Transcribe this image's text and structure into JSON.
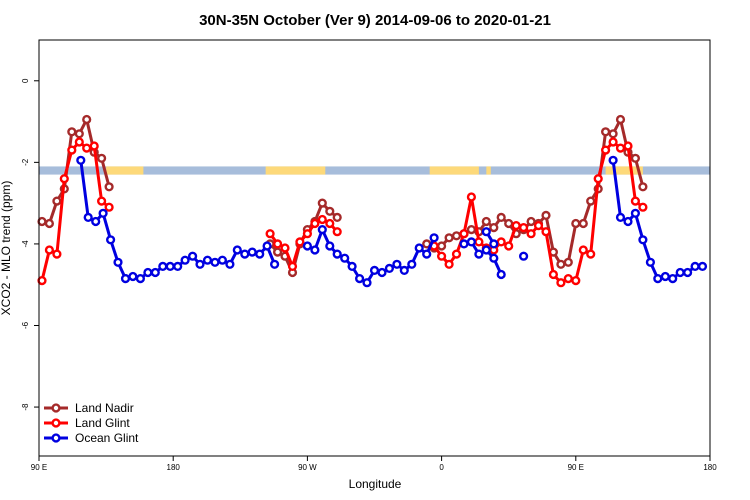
{
  "chart_data": {
    "type": "line",
    "title": "30N-35N October (Ver 9)   2014-09-06 to 2020-01-21",
    "xlabel": "Longitude",
    "ylabel": "XCO2 - MLO trend (ppm)",
    "xlim": [
      0,
      450
    ],
    "ylim": [
      -9.2,
      1.0
    ],
    "x_ticks": [
      {
        "value": 0,
        "label": "90 E"
      },
      {
        "value": 90,
        "label": "180"
      },
      {
        "value": 180,
        "label": "90 W"
      },
      {
        "value": 270,
        "label": "0"
      },
      {
        "value": 360,
        "label": "90 E"
      },
      {
        "value": 450,
        "label": "180"
      }
    ],
    "y_ticks": [
      {
        "value": 0,
        "label": "0"
      },
      {
        "value": -2,
        "label": "-2"
      },
      {
        "value": -4,
        "label": "-4"
      },
      {
        "value": -6,
        "label": "-6"
      },
      {
        "value": -8,
        "label": "-8"
      }
    ],
    "grid": false,
    "legend_position": "bottom-left",
    "land_mask": {
      "y_range": [
        -2.3,
        -2.1
      ],
      "ocean_color": "#a7bddb",
      "land_color": "#fdd97a",
      "land_intervals": [
        [
          45,
          70
        ],
        [
          152,
          192
        ],
        [
          262,
          295
        ],
        [
          300,
          303
        ],
        [
          380,
          405
        ]
      ]
    },
    "series": [
      {
        "name": "Land Nadir",
        "color": "#a52a2a",
        "segments": [
          [
            [
              2,
              -3.45
            ],
            [
              7,
              -3.5
            ],
            [
              12,
              -2.95
            ],
            [
              17,
              -2.65
            ],
            [
              22,
              -1.25
            ],
            [
              27,
              -1.3
            ],
            [
              32,
              -0.95
            ],
            [
              37,
              -1.75
            ],
            [
              42,
              -1.9
            ],
            [
              47,
              -2.6
            ]
          ],
          [
            [
              155,
              -4.0
            ],
            [
              160,
              -4.2
            ],
            [
              165,
              -4.3
            ],
            [
              170,
              -4.7
            ],
            [
              175,
              -4.0
            ],
            [
              180,
              -3.65
            ],
            [
              185,
              -3.45
            ],
            [
              190,
              -3.0
            ],
            [
              195,
              -3.2
            ],
            [
              200,
              -3.35
            ]
          ],
          [
            [
              260,
              -4.0
            ],
            [
              265,
              -4.1
            ],
            [
              270,
              -4.05
            ],
            [
              275,
              -3.85
            ],
            [
              280,
              -3.8
            ],
            [
              285,
              -3.75
            ],
            [
              290,
              -3.65
            ],
            [
              295,
              -3.7
            ],
            [
              300,
              -3.45
            ],
            [
              305,
              -3.6
            ],
            [
              310,
              -3.35
            ],
            [
              315,
              -3.5
            ],
            [
              320,
              -3.75
            ],
            [
              325,
              -3.65
            ],
            [
              330,
              -3.45
            ],
            [
              335,
              -3.5
            ],
            [
              340,
              -3.3
            ],
            [
              345,
              -4.2
            ],
            [
              350,
              -4.5
            ],
            [
              355,
              -4.45
            ],
            [
              360,
              -3.5
            ],
            [
              365,
              -3.5
            ],
            [
              370,
              -2.95
            ],
            [
              375,
              -2.65
            ],
            [
              380,
              -1.25
            ],
            [
              385,
              -1.3
            ],
            [
              390,
              -0.95
            ],
            [
              395,
              -1.75
            ],
            [
              400,
              -1.9
            ],
            [
              405,
              -2.6
            ]
          ]
        ]
      },
      {
        "name": "Land Glint",
        "color": "#ff0000",
        "segments": [
          [
            [
              2,
              -4.9
            ],
            [
              7,
              -4.15
            ],
            [
              12,
              -4.25
            ],
            [
              17,
              -2.4
            ],
            [
              22,
              -1.7
            ],
            [
              27,
              -1.5
            ],
            [
              32,
              -1.65
            ],
            [
              37,
              -1.6
            ],
            [
              42,
              -2.95
            ],
            [
              47,
              -3.1
            ]
          ],
          [
            [
              155,
              -3.75
            ],
            [
              160,
              -4.0
            ],
            [
              165,
              -4.1
            ],
            [
              170,
              -4.55
            ],
            [
              175,
              -3.95
            ],
            [
              180,
              -3.75
            ],
            [
              185,
              -3.5
            ],
            [
              190,
              -3.4
            ],
            [
              195,
              -3.5
            ],
            [
              200,
              -3.7
            ]
          ],
          [
            [
              265,
              -4.05
            ],
            [
              270,
              -4.3
            ],
            [
              275,
              -4.5
            ],
            [
              280,
              -4.25
            ],
            [
              285,
              -3.75
            ],
            [
              290,
              -2.85
            ],
            [
              295,
              -3.95
            ],
            [
              300,
              -4.1
            ],
            [
              305,
              -4.15
            ],
            [
              310,
              -3.95
            ],
            [
              315,
              -4.05
            ],
            [
              320,
              -3.55
            ],
            [
              325,
              -3.6
            ],
            [
              330,
              -3.75
            ],
            [
              335,
              -3.55
            ],
            [
              340,
              -3.7
            ],
            [
              345,
              -4.75
            ],
            [
              350,
              -4.95
            ],
            [
              355,
              -4.85
            ],
            [
              360,
              -4.9
            ],
            [
              365,
              -4.15
            ],
            [
              370,
              -4.25
            ],
            [
              375,
              -2.4
            ],
            [
              380,
              -1.7
            ],
            [
              385,
              -1.5
            ],
            [
              390,
              -1.65
            ],
            [
              395,
              -1.6
            ],
            [
              400,
              -2.95
            ],
            [
              405,
              -3.1
            ]
          ]
        ]
      },
      {
        "name": "Ocean Glint",
        "color": "#0000e0",
        "segments": [
          [
            [
              28,
              -1.95
            ],
            [
              33,
              -3.35
            ],
            [
              38,
              -3.45
            ],
            [
              43,
              -3.25
            ],
            [
              48,
              -3.9
            ],
            [
              53,
              -4.45
            ],
            [
              58,
              -4.85
            ],
            [
              63,
              -4.8
            ],
            [
              68,
              -4.85
            ],
            [
              73,
              -4.7
            ],
            [
              78,
              -4.7
            ],
            [
              83,
              -4.55
            ],
            [
              88,
              -4.55
            ],
            [
              93,
              -4.55
            ],
            [
              98,
              -4.4
            ],
            [
              103,
              -4.3
            ],
            [
              108,
              -4.5
            ],
            [
              113,
              -4.4
            ],
            [
              118,
              -4.45
            ],
            [
              123,
              -4.4
            ],
            [
              128,
              -4.5
            ],
            [
              133,
              -4.15
            ],
            [
              138,
              -4.25
            ],
            [
              143,
              -4.2
            ],
            [
              148,
              -4.25
            ],
            [
              153,
              -4.05
            ],
            [
              158,
              -4.5
            ]
          ],
          [
            [
              180,
              -4.05
            ],
            [
              185,
              -4.15
            ],
            [
              190,
              -3.65
            ],
            [
              195,
              -4.05
            ],
            [
              200,
              -4.25
            ],
            [
              205,
              -4.35
            ],
            [
              210,
              -4.55
            ],
            [
              215,
              -4.85
            ],
            [
              220,
              -4.95
            ],
            [
              225,
              -4.65
            ],
            [
              230,
              -4.7
            ],
            [
              235,
              -4.6
            ],
            [
              240,
              -4.5
            ],
            [
              245,
              -4.65
            ],
            [
              250,
              -4.5
            ],
            [
              255,
              -4.1
            ],
            [
              260,
              -4.25
            ],
            [
              265,
              -3.85
            ]
          ],
          [
            [
              285,
              -4.0
            ],
            [
              290,
              -3.95
            ],
            [
              295,
              -4.25
            ],
            [
              300,
              -4.15
            ],
            [
              305,
              -4.35
            ],
            [
              310,
              -4.75
            ]
          ],
          [
            [
              300,
              -3.7
            ],
            [
              305,
              -4.0
            ]
          ],
          [
            [
              325,
              -4.3
            ]
          ],
          [
            [
              385,
              -1.95
            ],
            [
              390,
              -3.35
            ],
            [
              395,
              -3.45
            ],
            [
              400,
              -3.25
            ],
            [
              405,
              -3.9
            ],
            [
              410,
              -4.45
            ],
            [
              415,
              -4.85
            ],
            [
              420,
              -4.8
            ],
            [
              425,
              -4.85
            ],
            [
              430,
              -4.7
            ],
            [
              435,
              -4.7
            ],
            [
              440,
              -4.55
            ],
            [
              445,
              -4.55
            ]
          ]
        ]
      }
    ]
  }
}
